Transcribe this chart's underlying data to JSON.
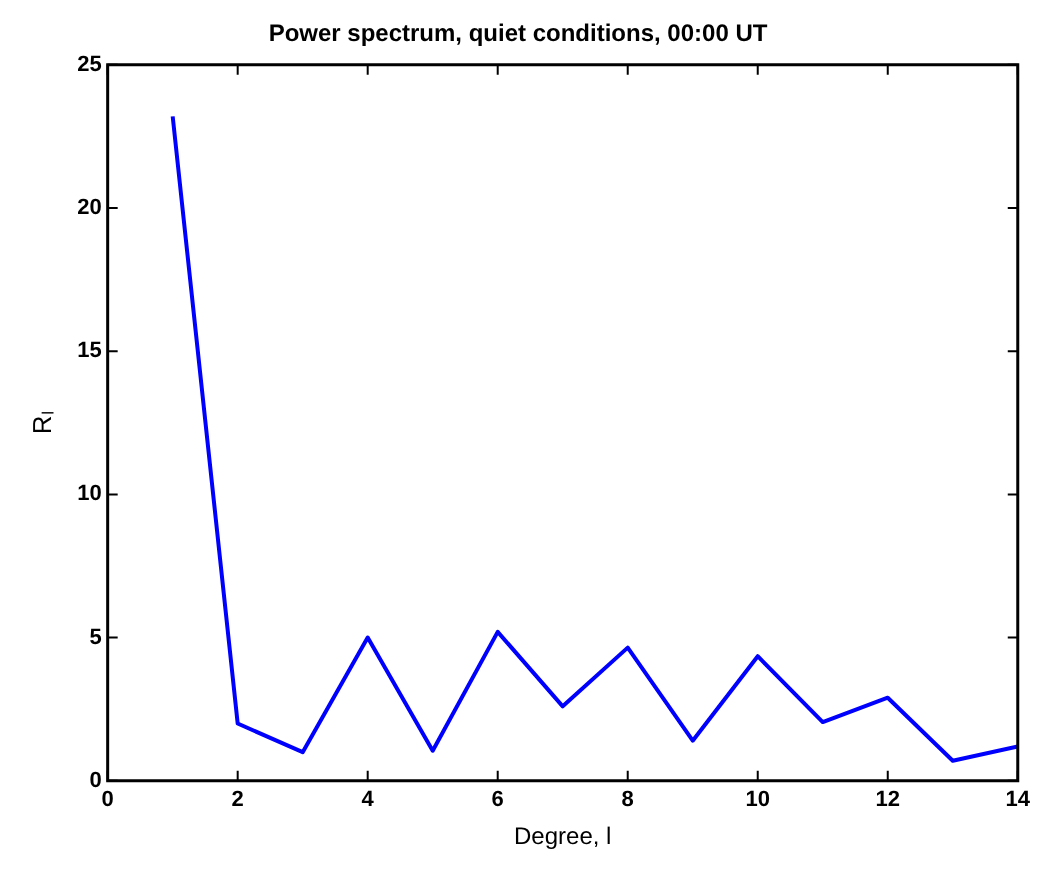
{
  "chart_data": {
    "type": "line",
    "title": "Power spectrum, quiet conditions, 00:00 UT",
    "xlabel": "Degree, l",
    "ylabel": "Rₗ",
    "x": [
      1,
      2,
      3,
      4,
      5,
      6,
      7,
      8,
      9,
      10,
      11,
      12,
      13,
      14
    ],
    "series": [
      {
        "color": "#0000ff",
        "values": [
          23.2,
          2.0,
          1.0,
          5.0,
          1.05,
          5.2,
          2.6,
          4.65,
          1.4,
          4.35,
          2.05,
          2.9,
          0.7,
          1.2
        ]
      }
    ],
    "xlim": [
      0,
      14
    ],
    "xticks": [
      0,
      2,
      4,
      6,
      8,
      10,
      12,
      14
    ],
    "ylim": [
      0,
      25
    ],
    "yticks": [
      0,
      5,
      10,
      15,
      20,
      25
    ],
    "grid": false,
    "legend": false,
    "marker": "none",
    "line_style": "solid"
  }
}
